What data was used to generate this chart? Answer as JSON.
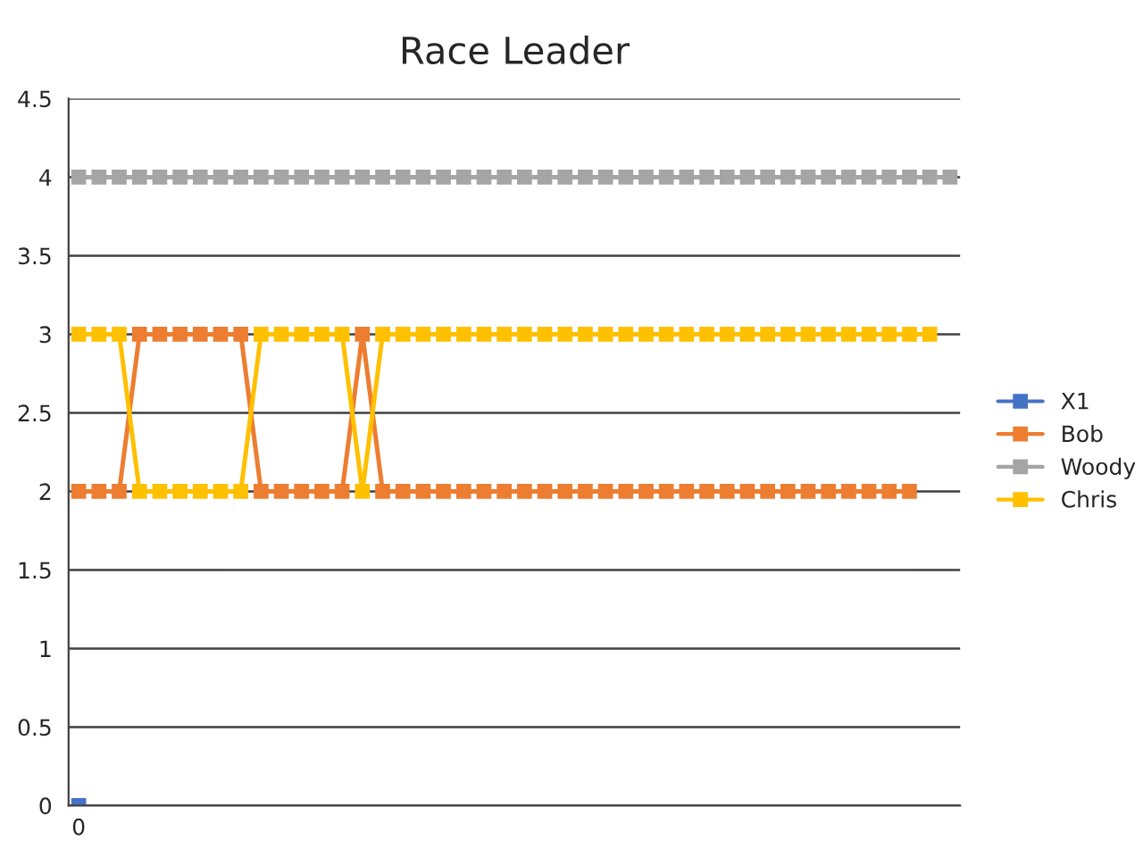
{
  "chart_data": {
    "type": "line",
    "title": "Race Leader",
    "categories": [
      "0",
      null,
      null,
      null,
      null,
      null,
      null,
      null,
      null,
      null,
      null,
      null,
      null,
      null,
      null,
      null,
      null,
      null,
      null,
      null,
      null,
      null,
      null,
      null,
      null,
      null,
      null,
      null,
      null,
      null,
      null,
      null,
      null,
      null,
      null,
      null,
      null,
      null,
      null,
      null,
      null,
      null,
      null,
      null
    ],
    "series": [
      {
        "name": "X1",
        "color": "#4472c4",
        "values": [
          0,
          null,
          null,
          null,
          null,
          null,
          null,
          null,
          null,
          null,
          null,
          null,
          null,
          null,
          null,
          null,
          null,
          null,
          null,
          null,
          null,
          null,
          null,
          null,
          null,
          null,
          null,
          null,
          null,
          null,
          null,
          null,
          null,
          null,
          null,
          null,
          null,
          null,
          null,
          null,
          null,
          null,
          null,
          null
        ]
      },
      {
        "name": "Bob",
        "color": "#ed7d31",
        "values": [
          2,
          2,
          2,
          3,
          3,
          3,
          3,
          3,
          3,
          2,
          2,
          2,
          2,
          2,
          3,
          2,
          2,
          2,
          2,
          2,
          2,
          2,
          2,
          2,
          2,
          2,
          2,
          2,
          2,
          2,
          2,
          2,
          2,
          2,
          2,
          2,
          2,
          2,
          2,
          2,
          2,
          2,
          null,
          null
        ]
      },
      {
        "name": "Woody",
        "color": "#a5a5a5",
        "values": [
          4,
          4,
          4,
          4,
          4,
          4,
          4,
          4,
          4,
          4,
          4,
          4,
          4,
          4,
          4,
          4,
          4,
          4,
          4,
          4,
          4,
          4,
          4,
          4,
          4,
          4,
          4,
          4,
          4,
          4,
          4,
          4,
          4,
          4,
          4,
          4,
          4,
          4,
          4,
          4,
          4,
          4,
          4,
          4
        ]
      },
      {
        "name": "Chris",
        "color": "#ffc000",
        "values": [
          3,
          3,
          3,
          2,
          2,
          2,
          2,
          2,
          2,
          3,
          3,
          3,
          3,
          3,
          2,
          3,
          3,
          3,
          3,
          3,
          3,
          3,
          3,
          3,
          3,
          3,
          3,
          3,
          3,
          3,
          3,
          3,
          3,
          3,
          3,
          3,
          3,
          3,
          3,
          3,
          3,
          3,
          3,
          null
        ]
      }
    ],
    "ylim": [
      0,
      4.5
    ],
    "yticks": [
      0,
      0.5,
      1,
      1.5,
      2,
      2.5,
      3,
      3.5,
      4,
      4.5
    ],
    "grid": "y",
    "legend": "right",
    "marker": "square",
    "line_style": "solid"
  }
}
